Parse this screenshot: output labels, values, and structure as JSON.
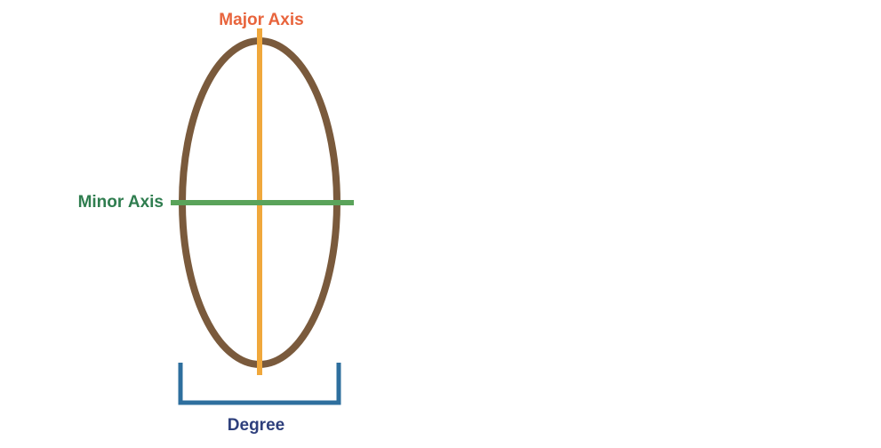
{
  "labels": {
    "major_axis": "Major Axis",
    "minor_axis": "Minor Axis",
    "degree": "Degree"
  },
  "colors": {
    "ellipse": "#7a5a3c",
    "major_axis": "#f0a83c",
    "minor_axis": "#5aa35a",
    "degree_bracket": "#2e6f9e",
    "major_label": "#e8643c",
    "minor_label": "#2f7d4f",
    "degree_label": "#2e3f7c"
  }
}
